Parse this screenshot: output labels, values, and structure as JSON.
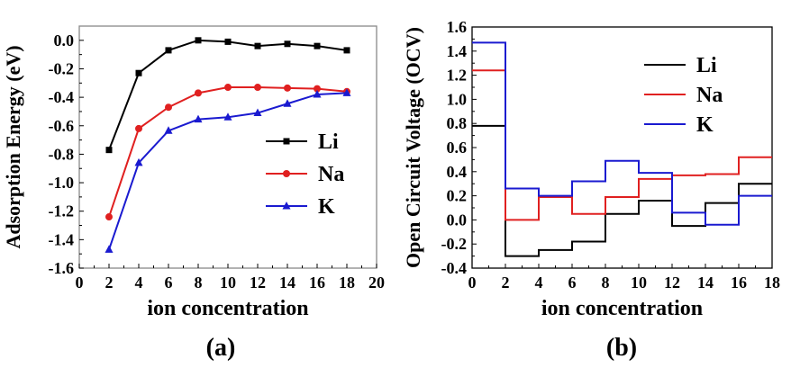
{
  "chart_data": [
    {
      "type": "line",
      "panel_label": "(a)",
      "xlabel": "ion concentration",
      "ylabel": "Adsorption Energy (eV)",
      "xlim": [
        0,
        20
      ],
      "ylim": [
        -1.6,
        0.1
      ],
      "xticks": [
        "0",
        "2",
        "4",
        "6",
        "8",
        "10",
        "12",
        "14",
        "16",
        "18",
        "20"
      ],
      "yticks": [
        "-1.6",
        "-1.4",
        "-1.2",
        "-1.0",
        "-0.8",
        "-0.6",
        "-0.4",
        "-0.2",
        "0.0"
      ],
      "grid": false,
      "legend_position": "center-right",
      "x": [
        2,
        4,
        6,
        8,
        10,
        12,
        14,
        16,
        18
      ],
      "series": [
        {
          "name": "Li",
          "color": "#000000",
          "marker": "square",
          "values": [
            -0.77,
            -0.23,
            -0.07,
            0.0,
            -0.01,
            -0.04,
            -0.025,
            -0.04,
            -0.07
          ]
        },
        {
          "name": "Na",
          "color": "#e02020",
          "marker": "circle",
          "values": [
            -1.24,
            -0.62,
            -0.47,
            -0.37,
            -0.33,
            -0.33,
            -0.335,
            -0.34,
            -0.36
          ]
        },
        {
          "name": "K",
          "color": "#1a1ad0",
          "marker": "triangle",
          "values": [
            -1.47,
            -0.86,
            -0.635,
            -0.555,
            -0.54,
            -0.51,
            -0.445,
            -0.38,
            -0.37
          ]
        }
      ]
    },
    {
      "type": "line",
      "style": "step",
      "panel_label": "(b)",
      "xlabel": "ion concentration",
      "ylabel": "Open Circuit Voltage (OCV)",
      "xlim": [
        0,
        18
      ],
      "ylim": [
        -0.4,
        1.6
      ],
      "xticks": [
        "0",
        "2",
        "4",
        "6",
        "8",
        "10",
        "12",
        "14",
        "16",
        "18"
      ],
      "yticks": [
        "-0.4",
        "-0.2",
        "0.0",
        "0.2",
        "0.4",
        "0.6",
        "0.8",
        "1.0",
        "1.2",
        "1.4",
        "1.6"
      ],
      "grid": false,
      "legend_position": "top-right",
      "x_edges": [
        0,
        2,
        4,
        6,
        8,
        10,
        12,
        14,
        16,
        18
      ],
      "series": [
        {
          "name": "Li",
          "color": "#000000",
          "values": [
            0.78,
            -0.3,
            -0.25,
            -0.18,
            0.05,
            0.16,
            -0.05,
            0.14,
            0.3
          ]
        },
        {
          "name": "Na",
          "color": "#e02020",
          "values": [
            1.24,
            0.0,
            0.19,
            0.05,
            0.19,
            0.34,
            0.37,
            0.38,
            0.52
          ]
        },
        {
          "name": "K",
          "color": "#1a1ad0",
          "values": [
            1.47,
            0.26,
            0.2,
            0.32,
            0.49,
            0.39,
            0.06,
            -0.04,
            0.2
          ]
        }
      ]
    }
  ]
}
